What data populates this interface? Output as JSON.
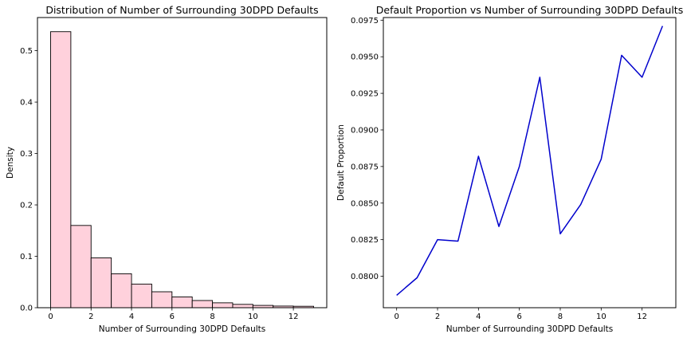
{
  "chart_data": [
    {
      "type": "bar",
      "title": "Distribution of Number of Surrounding 30DPD Defaults",
      "xlabel": "Number of Surrounding 30DPD Defaults",
      "ylabel": "Density",
      "xlim": [
        -0.65,
        13.65
      ],
      "ylim": [
        0,
        0.5645
      ],
      "xticks": [
        0,
        2,
        4,
        6,
        8,
        10,
        12
      ],
      "yticks": [
        0.0,
        0.1,
        0.2,
        0.3,
        0.4,
        0.5
      ],
      "ytick_labels": [
        "0.0",
        "0.1",
        "0.2",
        "0.3",
        "0.4",
        "0.5"
      ],
      "bins": [
        [
          0,
          1
        ],
        [
          1,
          2
        ],
        [
          2,
          3
        ],
        [
          3,
          4
        ],
        [
          4,
          5
        ],
        [
          5,
          6
        ],
        [
          6,
          7
        ],
        [
          7,
          8
        ],
        [
          8,
          9
        ],
        [
          9,
          10
        ],
        [
          10,
          11
        ],
        [
          11,
          12
        ],
        [
          12,
          13
        ]
      ],
      "values": [
        0.537,
        0.16,
        0.097,
        0.066,
        0.046,
        0.031,
        0.021,
        0.014,
        0.0095,
        0.0065,
        0.0045,
        0.0032,
        0.0028
      ],
      "fill_color": "#ffd1dc",
      "edge_color": "#000000",
      "grid": false
    },
    {
      "type": "line",
      "title": "Default Proportion vs Number of Surrounding 30DPD Defaults",
      "xlabel": "Number of Surrounding 30DPD Defaults",
      "ylabel": "Default Proportion",
      "xlim": [
        -0.65,
        13.65
      ],
      "ylim": [
        0.07785,
        0.09768
      ],
      "xticks": [
        0,
        2,
        4,
        6,
        8,
        10,
        12
      ],
      "yticks": [
        0.08,
        0.0825,
        0.085,
        0.0875,
        0.09,
        0.0925,
        0.095,
        0.0975
      ],
      "ytick_labels": [
        "0.0800",
        "0.0825",
        "0.0850",
        "0.0875",
        "0.0900",
        "0.0925",
        "0.0950",
        "0.0975"
      ],
      "x": [
        0,
        1,
        2,
        3,
        4,
        5,
        6,
        7,
        8,
        9,
        10,
        11,
        12,
        13
      ],
      "y": [
        0.0787,
        0.0799,
        0.0825,
        0.0824,
        0.0882,
        0.0834,
        0.0875,
        0.0936,
        0.0829,
        0.0849,
        0.088,
        0.0951,
        0.0936,
        0.0971
      ],
      "line_color": "#0000cc",
      "grid": false
    }
  ]
}
